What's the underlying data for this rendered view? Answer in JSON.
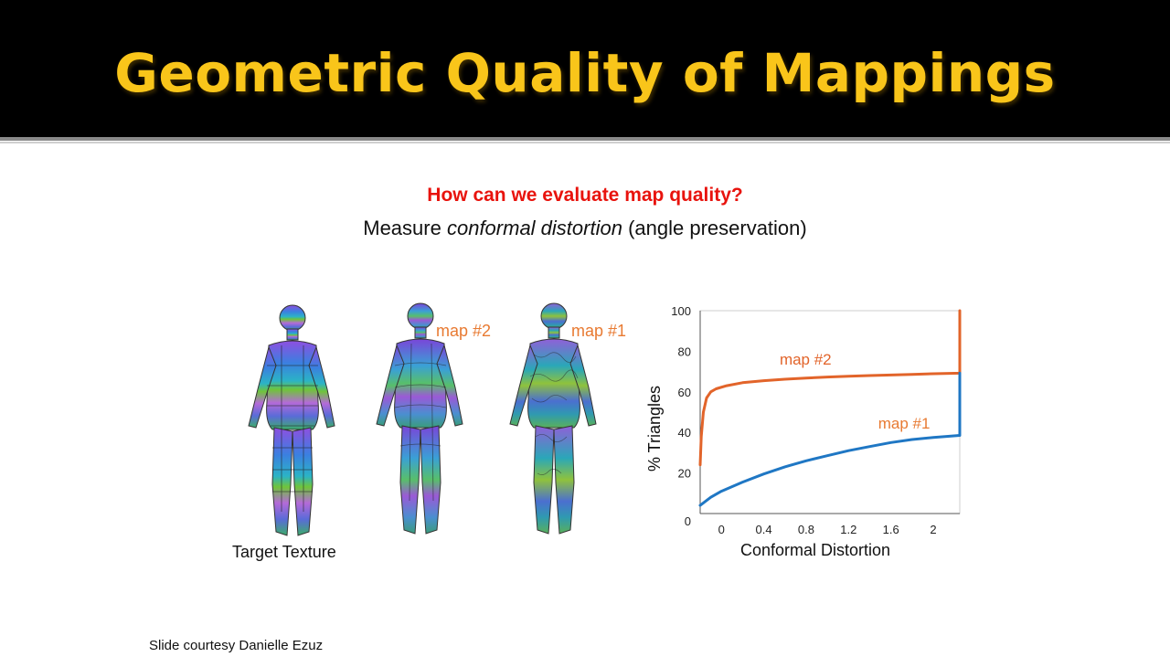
{
  "slide": {
    "title": "Geometric Quality of Mappings",
    "question": "How can we evaluate map quality?",
    "subtitle_pre": "Measure ",
    "subtitle_em": "conformal distortion",
    "subtitle_post": " (angle preservation)",
    "figure_caption": "Target Texture",
    "figure_label_map2": "map #2",
    "figure_label_map1": "map #1",
    "footer": "Slide courtesy Danielle Ezuz"
  },
  "chart_data": {
    "type": "line",
    "xlabel": "Conformal Distortion",
    "ylabel": "% Triangles",
    "xlim": [
      -0.2,
      2.25
    ],
    "ylim": [
      0,
      100
    ],
    "xticks": [
      "0",
      "0.4",
      "0.8",
      "1.2",
      "1.6",
      "2"
    ],
    "xtick_values": [
      0,
      0.4,
      0.8,
      1.2,
      1.6,
      2
    ],
    "yticks": [
      "0",
      "20",
      "40",
      "60",
      "80",
      "100"
    ],
    "ytick_values": [
      0,
      20,
      40,
      60,
      80,
      100
    ],
    "series": [
      {
        "name": "map #2",
        "color": "#e2642a",
        "x": [
          -0.2,
          -0.19,
          -0.17,
          -0.14,
          -0.1,
          -0.05,
          0.05,
          0.2,
          0.4,
          0.6,
          0.8,
          1.0,
          1.2,
          1.4,
          1.6,
          1.8,
          2.0,
          2.25,
          2.25
        ],
        "y": [
          24,
          38,
          50,
          57,
          60,
          61.5,
          63,
          64.5,
          65.5,
          66.2,
          66.8,
          67.3,
          67.7,
          68.0,
          68.3,
          68.6,
          68.9,
          69.2,
          100
        ]
      },
      {
        "name": "map #1",
        "color": "#1f77c4",
        "x": [
          -0.2,
          -0.1,
          0.0,
          0.2,
          0.4,
          0.6,
          0.8,
          1.0,
          1.2,
          1.4,
          1.6,
          1.8,
          2.0,
          2.25,
          2.25
        ],
        "y": [
          4,
          8,
          11,
          15.5,
          19.5,
          23,
          26,
          28.5,
          31,
          33,
          35,
          36.5,
          37.5,
          38.5,
          69.2
        ]
      }
    ],
    "annotations": [
      {
        "text": "map #2",
        "x": 0.55,
        "y": 73.5,
        "color": "#e2642a"
      },
      {
        "text": "map #1",
        "x": 1.48,
        "y": 42,
        "color": "#e87a32"
      }
    ],
    "grid": false
  },
  "colors": {
    "title": "#f9c51a",
    "question": "#e8130d",
    "map_label": "#e87a32"
  }
}
